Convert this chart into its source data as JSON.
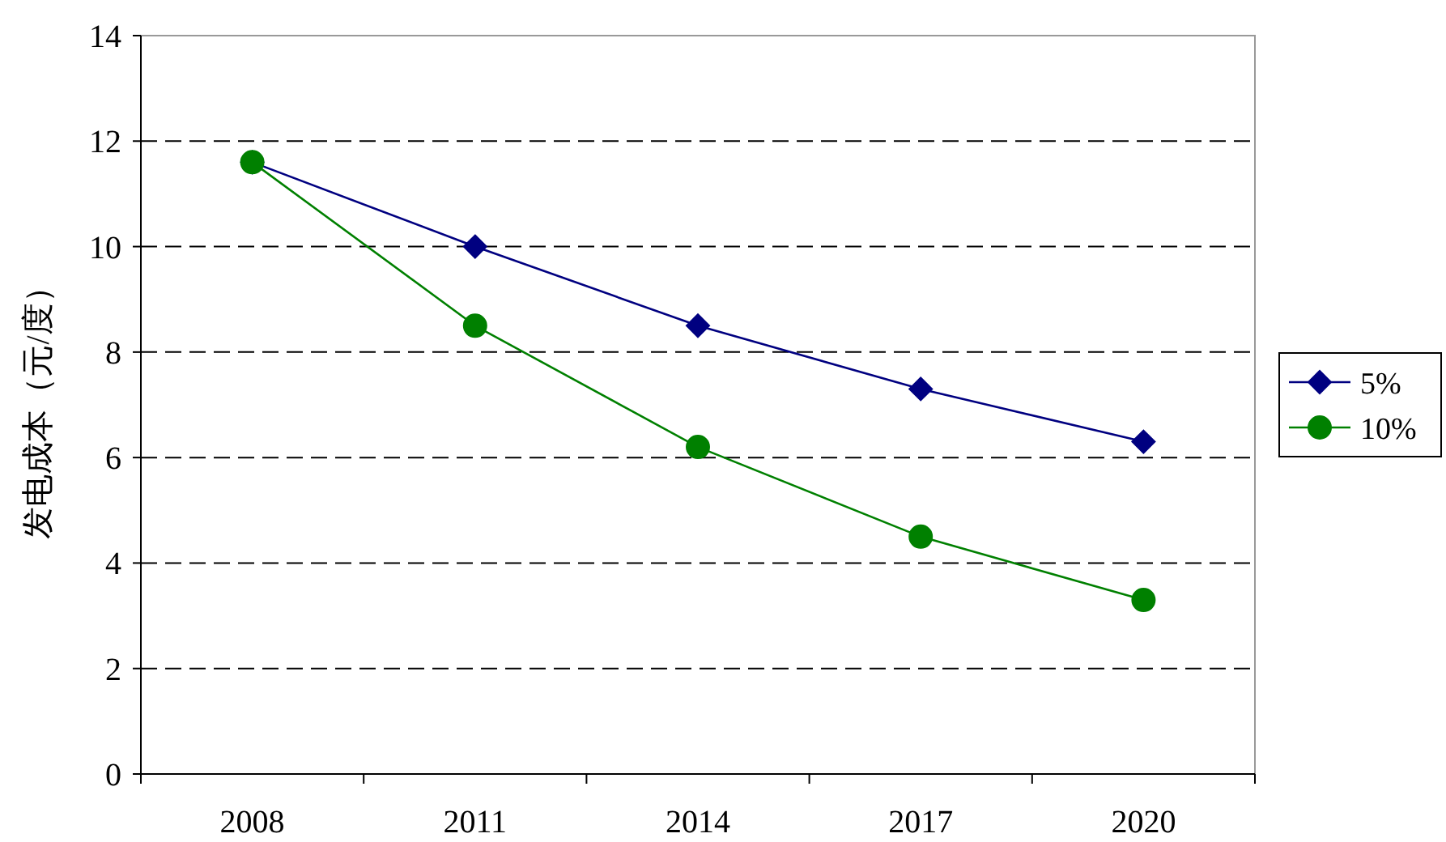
{
  "chart_data": {
    "type": "line",
    "ylabel": "发电成本（元/度）",
    "categories": [
      "2008",
      "2011",
      "2014",
      "2017",
      "2020"
    ],
    "series": [
      {
        "name": "5%",
        "color": "#000080",
        "marker": "diamond",
        "values": [
          11.6,
          10.0,
          8.5,
          7.3,
          6.3
        ]
      },
      {
        "name": "10%",
        "color": "#008000",
        "marker": "circle",
        "values": [
          11.6,
          8.5,
          6.2,
          4.5,
          3.3
        ]
      }
    ],
    "ylim": [
      0,
      14
    ],
    "yticks": [
      0,
      2,
      4,
      6,
      8,
      10,
      12,
      14
    ],
    "grid": "y",
    "legend": "right",
    "line_style": "solid"
  }
}
